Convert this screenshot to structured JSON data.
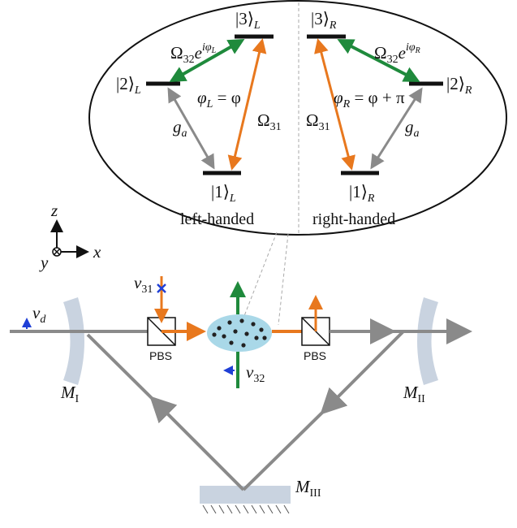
{
  "levels_left": {
    "l3": "|3⟩",
    "l3_sub": "L",
    "l2": "|2⟩",
    "l2_sub": "L",
    "l1": "|1⟩",
    "l1_sub": "L"
  },
  "levels_right": {
    "l3": "|3⟩",
    "l3_sub": "R",
    "l2": "|2⟩",
    "l2_sub": "R",
    "l1": "|1⟩",
    "l1_sub": "R"
  },
  "couplings_left": {
    "omega32_base": "Ω",
    "omega32_sub": "32",
    "omega32_e": "e",
    "omega32_sup": "iφ",
    "omega32_sup_sub": "L",
    "omega31_base": "Ω",
    "omega31_sub": "31",
    "ga_base": "g",
    "ga_sub": "a",
    "phase_lhs": "φ",
    "phase_lhs_sub": "L",
    "phase_rhs": " = φ"
  },
  "couplings_right": {
    "omega32_base": "Ω",
    "omega32_sub": "32",
    "omega32_e": "e",
    "omega32_sup": "iφ",
    "omega32_sup_sub": "R",
    "omega31_base": "Ω",
    "omega31_sub": "31",
    "ga_base": "g",
    "ga_sub": "a",
    "phase_lhs": "φ",
    "phase_lhs_sub": "R",
    "phase_rhs": " = φ + π"
  },
  "handedness": {
    "left": "left-handed",
    "right": "right-handed"
  },
  "axes": {
    "z": "z",
    "x": "x",
    "y": "y"
  },
  "fields": {
    "nu_d": "ν",
    "nu_d_sub": "d",
    "nu_31": "ν",
    "nu_31_sub": "31",
    "nu_32": "ν",
    "nu_32_sub": "32"
  },
  "components": {
    "pbs_left": "PBS",
    "pbs_right": "PBS"
  },
  "mirrors": {
    "m1": "M",
    "m1_sub": "I",
    "m2": "M",
    "m2_sub": "II",
    "m3": "M",
    "m3_sub": "III"
  },
  "colors": {
    "cavity_beam": "#8a8a8a",
    "coupling_31": "#e8781e",
    "coupling_32": "#1f8a3c",
    "probe_marker": "#1f3fd6",
    "atom_cloud": "#a9d8e8",
    "mirror": "#c9d3e0"
  }
}
